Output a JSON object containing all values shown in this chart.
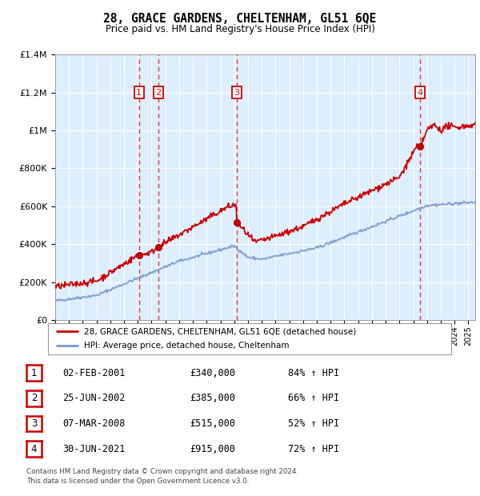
{
  "title": "28, GRACE GARDENS, CHELTENHAM, GL51 6QE",
  "subtitle": "Price paid vs. HM Land Registry's House Price Index (HPI)",
  "legend_line1": "28, GRACE GARDENS, CHELTENHAM, GL51 6QE (detached house)",
  "legend_line2": "HPI: Average price, detached house, Cheltenham",
  "table_rows": [
    {
      "num": "1",
      "date": "02-FEB-2001",
      "price": "£340,000",
      "change": "84% ↑ HPI"
    },
    {
      "num": "2",
      "date": "25-JUN-2002",
      "price": "£385,000",
      "change": "66% ↑ HPI"
    },
    {
      "num": "3",
      "date": "07-MAR-2008",
      "price": "£515,000",
      "change": "52% ↑ HPI"
    },
    {
      "num": "4",
      "date": "30-JUN-2021",
      "price": "£915,000",
      "change": "72% ↑ HPI"
    }
  ],
  "footnote1": "Contains HM Land Registry data © Crown copyright and database right 2024.",
  "footnote2": "This data is licensed under the Open Government Licence v3.0.",
  "sale_years": [
    2001.09,
    2002.49,
    2008.18,
    2021.5
  ],
  "sale_prices": [
    340000,
    385000,
    515000,
    915000
  ],
  "ylim": [
    0,
    1400000
  ],
  "xlim_start": 1995,
  "xlim_end": 2025.5,
  "red_color": "#cc0000",
  "blue_color": "#7799cc",
  "background_color": "#ddeeff",
  "plot_bg": "#ffffff",
  "grid_color": "#cccccc",
  "vline_color": "#ee3333"
}
